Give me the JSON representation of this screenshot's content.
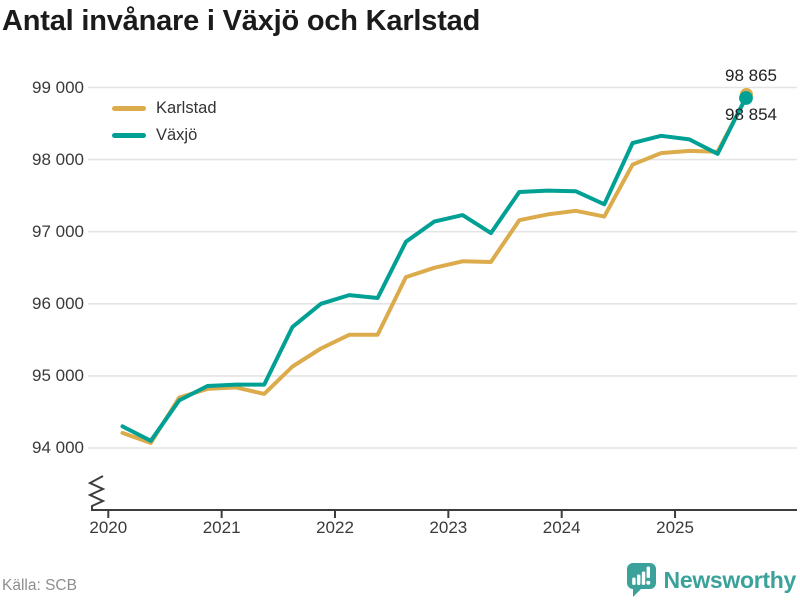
{
  "header": {
    "title": "Antal invånare i Växjö och Karlstad"
  },
  "legend": {
    "items": [
      {
        "label": "Karlstad",
        "color": "#dcab4b"
      },
      {
        "label": "Växjö",
        "color": "#00a094"
      }
    ]
  },
  "chart_data": {
    "type": "line",
    "title": "Antal invånare i Växjö och Karlstad",
    "x_unit": "quarter",
    "categories": [
      "2020-Q1",
      "2020-Q2",
      "2020-Q3",
      "2020-Q4",
      "2021-Q1",
      "2021-Q2",
      "2021-Q3",
      "2021-Q4",
      "2022-Q1",
      "2022-Q2",
      "2022-Q3",
      "2022-Q4",
      "2023-Q1",
      "2023-Q2",
      "2023-Q3",
      "2023-Q4",
      "2024-Q1",
      "2024-Q2",
      "2024-Q3",
      "2024-Q4",
      "2025-Q1",
      "2025-Q2",
      "2025-Q3"
    ],
    "series": [
      {
        "name": "Karlstad",
        "color": "#dcab4b",
        "end_label": "98 854",
        "end_value": 98854,
        "values": [
          94210,
          94070,
          94700,
          94820,
          94840,
          94750,
          95130,
          95380,
          95570,
          95570,
          96370,
          96500,
          96590,
          96580,
          97160,
          97240,
          97290,
          97210,
          97930,
          98090,
          98120,
          98110,
          98854
        ]
      },
      {
        "name": "Växjö",
        "color": "#00a094",
        "end_label": "98 865",
        "end_value": 98865,
        "values": [
          94300,
          94100,
          94660,
          94860,
          94880,
          94880,
          95680,
          96000,
          96120,
          96080,
          96860,
          97140,
          97230,
          96980,
          97550,
          97570,
          97560,
          97380,
          98230,
          98330,
          98280,
          98080,
          98865
        ]
      }
    ],
    "y_ticks": [
      94000,
      95000,
      96000,
      97000,
      98000,
      99000
    ],
    "y_tick_labels": [
      "94 000",
      "95 000",
      "96 000",
      "97 000",
      "98 000",
      "99 000"
    ],
    "x_ticks": [
      2020,
      2021,
      2022,
      2023,
      2024,
      2025
    ],
    "x_tick_labels": [
      "2020",
      "2021",
      "2022",
      "2023",
      "2024",
      "2025"
    ],
    "ylim": [
      94000,
      99000
    ],
    "grid": "horizontal",
    "legend_position": "top-left",
    "y_axis_break": true,
    "axis_color": "#3d3d3d",
    "grid_color": "#e4e4e4",
    "marker": "dot-on-last-point"
  },
  "footer": {
    "source": "Källa: SCB",
    "brand": "Newsworthy",
    "brand_color": "#3aa29b"
  }
}
